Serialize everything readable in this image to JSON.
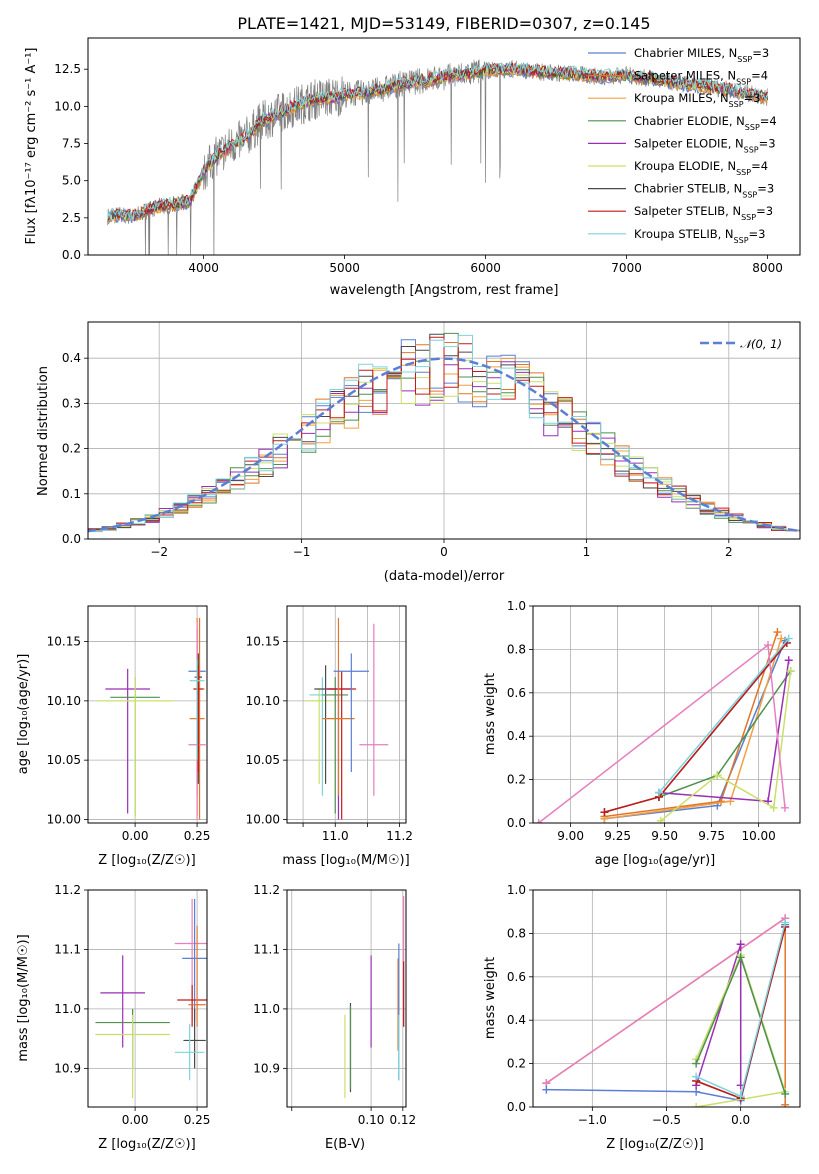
{
  "chart_data": [
    {
      "id": "spectrum",
      "type": "line",
      "title": "PLATE=1421, MJD=53149, FIBERID=0307, z=0.145",
      "xlabel": "wavelength [Angstrom, rest frame]",
      "ylabel": "Flux [fλ10⁻¹⁷ erg cm⁻² s⁻¹ A⁻¹]",
      "xlim": [
        3180,
        8230
      ],
      "ylim": [
        0,
        14.6
      ],
      "xticks": [
        4000,
        5000,
        6000,
        7000,
        8000
      ],
      "yticks": [
        "0.0",
        "2.5",
        "5.0",
        "7.5",
        "10.0",
        "12.5"
      ],
      "grid": false,
      "legend_position": "top-right",
      "observed_color": "#808080",
      "continuum": {
        "x": [
          3320,
          3400,
          3500,
          3600,
          3700,
          3800,
          3900,
          4000,
          4100,
          4200,
          4300,
          4400,
          4500,
          4600,
          4700,
          4800,
          4900,
          5000,
          5200,
          5400,
          5600,
          5800,
          6000,
          6200,
          6400,
          6600,
          6800,
          7000,
          7200,
          7400,
          7600,
          7800,
          8000
        ],
        "y": [
          2.6,
          2.7,
          2.6,
          3.0,
          3.3,
          3.4,
          3.6,
          5.6,
          6.7,
          7.4,
          7.9,
          8.9,
          9.4,
          9.8,
          10.2,
          10.5,
          10.6,
          10.8,
          11.0,
          11.5,
          11.8,
          12.1,
          12.4,
          12.5,
          12.3,
          12.2,
          12.0,
          12.1,
          11.8,
          11.5,
          11.3,
          11.0,
          10.6
        ]
      },
      "series": [
        {
          "name": "Chabrier MILES, N",
          "sub": "SSP",
          "suffix": "=3",
          "color": "#5b7fd4"
        },
        {
          "name": "Salpeter MILES, N",
          "sub": "SSP",
          "suffix": "=4",
          "color": "#e0762a"
        },
        {
          "name": "Kroupa MILES, N",
          "sub": "SSP",
          "suffix": "=3",
          "color": "#f0a043"
        },
        {
          "name": "Chabrier ELODIE, N",
          "sub": "SSP",
          "suffix": "=4",
          "color": "#4f8f4f"
        },
        {
          "name": "Salpeter ELODIE, N",
          "sub": "SSP",
          "suffix": "=3",
          "color": "#9a2fb5"
        },
        {
          "name": "Kroupa ELODIE, N",
          "sub": "SSP",
          "suffix": "=4",
          "color": "#c8e06a"
        },
        {
          "name": "Chabrier STELIB, N",
          "sub": "SSP",
          "suffix": "=3",
          "color": "#4a4a4a"
        },
        {
          "name": "Salpeter STELIB, N",
          "sub": "SSP",
          "suffix": "=3",
          "color": "#c41a1a"
        },
        {
          "name": "Kroupa STELIB, N",
          "sub": "SSP",
          "suffix": "=3",
          "color": "#7dd4dc"
        }
      ]
    },
    {
      "id": "residuals",
      "type": "step",
      "xlabel": "(data-model)/error",
      "ylabel": "Normed distribution",
      "xlim": [
        -2.5,
        2.5
      ],
      "ylim": [
        0,
        0.48
      ],
      "xticks": [
        -2,
        -1,
        0,
        1,
        2
      ],
      "xticklabels": [
        "−2",
        "−1",
        "0",
        "1",
        "2"
      ],
      "yticks": [
        "0.0",
        "0.1",
        "0.2",
        "0.3",
        "0.4"
      ],
      "grid": true,
      "legend_position": "top-right",
      "gauss_label": "𝒩(0, 1)",
      "gauss_color": "#5b7fd4"
    },
    {
      "id": "age_vs_Z",
      "type": "errorbar",
      "xlabel": "Z [log₁₀(Z/Z☉)]",
      "ylabel": "age  [log₁₀(age/yr)]",
      "xlim": [
        -0.19,
        0.29
      ],
      "ylim": [
        9.997,
        10.18
      ],
      "xticks": [
        0.0,
        0.25
      ],
      "xticklabels": [
        "0.00",
        "0.25"
      ],
      "yticks": [
        10.0,
        10.05,
        10.1,
        10.15
      ],
      "yticklabels": [
        "10.00",
        "10.05",
        "10.10",
        "10.15"
      ],
      "grid": true,
      "points": [
        {
          "x": -0.03,
          "y": 10.11,
          "xerr": 0.09,
          "ylo": 10.005,
          "yhi": 10.127,
          "color": "#9a2fb5"
        },
        {
          "x": 0.0,
          "y": 10.103,
          "xerr": 0.1,
          "ylo": 10.003,
          "yhi": 10.12,
          "color": "#4f8f4f"
        },
        {
          "x": 0.0,
          "y": 10.1,
          "xerr": 0.15,
          "ylo": 10.0,
          "yhi": 10.12,
          "color": "#c8e06a"
        },
        {
          "x": 0.25,
          "y": 10.125,
          "xerr": 0.035,
          "ylo": 10.02,
          "yhi": 10.16,
          "color": "#5b7fd4"
        },
        {
          "x": 0.26,
          "y": 10.11,
          "xerr": 0.02,
          "ylo": 10.0,
          "yhi": 10.17,
          "color": "#e0762a"
        },
        {
          "x": 0.25,
          "y": 10.085,
          "xerr": 0.03,
          "ylo": 10.003,
          "yhi": 10.17,
          "color": "#e0762a"
        },
        {
          "x": 0.25,
          "y": 10.063,
          "xerr": 0.035,
          "ylo": 10.0,
          "yhi": 10.167,
          "color": "#e87ec0"
        },
        {
          "x": 0.255,
          "y": 10.12,
          "xerr": 0.015,
          "ylo": 10.03,
          "yhi": 10.14,
          "color": "#4a4a4a"
        },
        {
          "x": 0.255,
          "y": 10.11,
          "xerr": 0.02,
          "ylo": 10.04,
          "yhi": 10.13,
          "color": "#c41a1a"
        },
        {
          "x": 0.25,
          "y": 10.117,
          "xerr": 0.03,
          "ylo": 10.05,
          "yhi": 10.135,
          "color": "#7dd4dc"
        }
      ]
    },
    {
      "id": "age_vs_mass",
      "type": "errorbar",
      "xlabel": "mass [log₁₀(M/M☉)]",
      "ylabel": "",
      "xlim": [
        10.85,
        11.22
      ],
      "ylim": [
        9.997,
        10.18
      ],
      "xticks": [
        10.9,
        11.0,
        11.1,
        11.2
      ],
      "xticklabels": [
        "",
        "11.0",
        "",
        "11.2"
      ],
      "yticks": [
        10.0,
        10.05,
        10.1,
        10.15
      ],
      "yticklabels": [
        "10.00",
        "10.05",
        "10.10",
        "10.15"
      ],
      "grid": true,
      "points": [
        {
          "x": 10.95,
          "y": 10.1,
          "xerr": 0.04,
          "ylo": 10.03,
          "yhi": 10.11,
          "color": "#c8e06a"
        },
        {
          "x": 10.96,
          "y": 10.105,
          "xerr": 0.04,
          "ylo": 10.02,
          "yhi": 10.12,
          "color": "#7dd4dc"
        },
        {
          "x": 10.97,
          "y": 10.11,
          "xerr": 0.035,
          "ylo": 10.03,
          "yhi": 10.13,
          "color": "#4a4a4a"
        },
        {
          "x": 11.0,
          "y": 10.105,
          "xerr": 0.04,
          "ylo": 10.005,
          "yhi": 10.12,
          "color": "#4f8f4f"
        },
        {
          "x": 11.01,
          "y": 10.11,
          "xerr": 0.04,
          "ylo": 10.0,
          "yhi": 10.125,
          "color": "#9a2fb5"
        },
        {
          "x": 11.02,
          "y": 10.11,
          "xerr": 0.045,
          "ylo": 10.0,
          "yhi": 10.125,
          "color": "#c41a1a"
        },
        {
          "x": 11.01,
          "y": 10.085,
          "xerr": 0.05,
          "ylo": 10.02,
          "yhi": 10.17,
          "color": "#e0762a"
        },
        {
          "x": 11.05,
          "y": 10.125,
          "xerr": 0.055,
          "ylo": 10.04,
          "yhi": 10.14,
          "color": "#5b7fd4"
        },
        {
          "x": 11.12,
          "y": 10.063,
          "xerr": 0.045,
          "ylo": 10.02,
          "yhi": 10.165,
          "color": "#e87ec0"
        }
      ]
    },
    {
      "id": "weight_vs_age",
      "type": "line",
      "xlabel": "age  [log₁₀(age/yr)]",
      "ylabel": "mass weight",
      "xlim": [
        8.8,
        10.22
      ],
      "ylim": [
        0.0,
        1.0
      ],
      "xticks": [
        9.0,
        9.25,
        9.5,
        9.75,
        10.0
      ],
      "xticklabels": [
        "9.00",
        "9.25",
        "9.50",
        "9.75",
        "10.00"
      ],
      "yticks": [
        0.0,
        0.2,
        0.4,
        0.6,
        0.8,
        1.0
      ],
      "yticklabels": [
        "0.0",
        "0.2",
        "0.4",
        "0.6",
        "0.8",
        "1.0"
      ],
      "grid": true,
      "series": [
        {
          "color": "#5b7fd4",
          "x": [
            9.18,
            9.78,
            10.14
          ],
          "y": [
            0.02,
            0.08,
            0.84
          ]
        },
        {
          "color": "#e0762a",
          "x": [
            9.18,
            9.8,
            10.1
          ],
          "y": [
            0.03,
            0.1,
            0.88
          ]
        },
        {
          "color": "#f0a043",
          "x": [
            9.18,
            9.85,
            10.12
          ],
          "y": [
            0.02,
            0.1,
            0.85
          ]
        },
        {
          "color": "#4f8f4f",
          "x": [
            9.47,
            9.78,
            10.17
          ],
          "y": [
            0.12,
            0.22,
            0.7
          ]
        },
        {
          "color": "#9a2fb5",
          "x": [
            9.47,
            10.05,
            10.16
          ],
          "y": [
            0.14,
            0.1,
            0.75
          ]
        },
        {
          "color": "#c8e06a",
          "x": [
            9.48,
            9.78,
            10.08,
            10.17
          ],
          "y": [
            0.01,
            0.22,
            0.07,
            0.7
          ]
        },
        {
          "color": "#4a4a4a",
          "x": [
            9.18,
            9.47,
            10.15
          ],
          "y": [
            0.05,
            0.12,
            0.83
          ]
        },
        {
          "color": "#c41a1a",
          "x": [
            9.18,
            9.47,
            10.15
          ],
          "y": [
            0.05,
            0.12,
            0.83
          ]
        },
        {
          "color": "#7dd4dc",
          "x": [
            9.47,
            10.16
          ],
          "y": [
            0.14,
            0.85
          ]
        },
        {
          "color": "#e87ec0",
          "x": [
            8.83,
            10.05,
            10.14
          ],
          "y": [
            0.0,
            0.82,
            0.07
          ]
        }
      ]
    },
    {
      "id": "mass_vs_Z",
      "type": "errorbar",
      "xlabel": "Z [log₁₀(Z/Z☉)]",
      "ylabel": "mass [log₁₀(M/M☉)]",
      "xlim": [
        -0.19,
        0.29
      ],
      "ylim": [
        10.835,
        11.2
      ],
      "xticks": [
        -0.25,
        0.0,
        0.25
      ],
      "xticklabels": [
        "",
        "0.00",
        "0.25"
      ],
      "yticks": [
        10.9,
        11.0,
        11.1,
        11.2
      ],
      "yticklabels": [
        "10.9",
        "11.0",
        "11.1",
        "11.2"
      ],
      "grid": true,
      "points": [
        {
          "x": -0.05,
          "y": 11.027,
          "xerr": 0.09,
          "ylo": 10.935,
          "yhi": 11.09,
          "color": "#9a2fb5"
        },
        {
          "x": -0.01,
          "y": 10.977,
          "xerr": 0.15,
          "ylo": 10.9,
          "yhi": 11.0,
          "color": "#4f8f4f"
        },
        {
          "x": -0.01,
          "y": 10.957,
          "xerr": 0.15,
          "ylo": 10.85,
          "yhi": 10.99,
          "color": "#c8e06a"
        },
        {
          "x": 0.23,
          "y": 11.11,
          "xerr": 0.07,
          "ylo": 10.98,
          "yhi": 11.185,
          "color": "#e87ec0"
        },
        {
          "x": 0.24,
          "y": 11.085,
          "xerr": 0.05,
          "ylo": 10.98,
          "yhi": 11.185,
          "color": "#5b7fd4"
        },
        {
          "x": 0.23,
          "y": 11.015,
          "xerr": 0.06,
          "ylo": 10.97,
          "yhi": 11.04,
          "color": "#c41a1a"
        },
        {
          "x": 0.25,
          "y": 11.007,
          "xerr": 0.035,
          "ylo": 10.97,
          "yhi": 11.14,
          "color": "#e0762a"
        },
        {
          "x": 0.24,
          "y": 10.947,
          "xerr": 0.045,
          "ylo": 10.9,
          "yhi": 11.0,
          "color": "#4a4a4a"
        },
        {
          "x": 0.22,
          "y": 10.927,
          "xerr": 0.06,
          "ylo": 10.88,
          "yhi": 10.975,
          "color": "#7dd4dc"
        }
      ]
    },
    {
      "id": "mass_vs_EBV",
      "type": "errorbar",
      "xlabel": "E(B-V)",
      "ylabel": "",
      "xlim": [
        0.047,
        0.122
      ],
      "ylim": [
        10.835,
        11.2
      ],
      "xticks": [
        0.05,
        0.1,
        0.12
      ],
      "xticklabels": [
        "",
        "0.10",
        "0.12"
      ],
      "yticks": [
        10.9,
        11.0,
        11.1,
        11.2
      ],
      "yticklabels": [
        "10.9",
        "11.0",
        "11.1",
        "11.2"
      ],
      "grid": true,
      "points": [
        {
          "x": 0.0835,
          "y": 10.94,
          "xerr": 0,
          "ylo": 10.85,
          "yhi": 10.99,
          "color": "#c8e06a"
        },
        {
          "x": 0.087,
          "y": 10.937,
          "xerr": 0,
          "ylo": 10.86,
          "yhi": 11.01,
          "color": "#4a4a4a"
        },
        {
          "x": 0.087,
          "y": 10.937,
          "xerr": 0,
          "ylo": 10.865,
          "yhi": 11.005,
          "color": "#4f8f4f"
        },
        {
          "x": 0.1,
          "y": 11.01,
          "xerr": 0,
          "ylo": 10.935,
          "yhi": 11.09,
          "color": "#9a2fb5"
        },
        {
          "x": 0.117,
          "y": 11.03,
          "xerr": 0,
          "ylo": 10.93,
          "yhi": 11.085,
          "color": "#e0762a"
        },
        {
          "x": 0.1175,
          "y": 11.0,
          "xerr": 0,
          "ylo": 10.88,
          "yhi": 11.11,
          "color": "#5b7fd4"
        },
        {
          "x": 0.1175,
          "y": 10.96,
          "xerr": 0,
          "ylo": 10.88,
          "yhi": 10.99,
          "color": "#7dd4dc"
        },
        {
          "x": 0.1205,
          "y": 11.05,
          "xerr": 0,
          "ylo": 10.97,
          "yhi": 11.19,
          "color": "#e87ec0"
        },
        {
          "x": 0.1205,
          "y": 11.03,
          "xerr": 0,
          "ylo": 10.97,
          "yhi": 11.08,
          "color": "#c41a1a"
        }
      ]
    },
    {
      "id": "weight_vs_Z",
      "type": "line",
      "xlabel": "Z [log₁₀(Z/Z☉)]",
      "ylabel": "mass weight",
      "xlim": [
        -1.4,
        0.4
      ],
      "ylim": [
        0.0,
        1.0
      ],
      "xticks": [
        -1.0,
        -0.5,
        0.0
      ],
      "xticklabels": [
        "−1.0",
        "−0.5",
        "0.0"
      ],
      "yticks": [
        0.0,
        0.2,
        0.4,
        0.6,
        0.8,
        1.0
      ],
      "yticklabels": [
        "0.0",
        "0.2",
        "0.4",
        "0.6",
        "0.8",
        "1.0"
      ],
      "grid": true,
      "series": [
        {
          "color": "#e0762a",
          "x": [
            -1.31,
            0.3,
            0.3
          ],
          "y": [
            0.11,
            0.87,
            0.01
          ]
        },
        {
          "color": "#e87ec0",
          "x": [
            -1.31,
            0.3
          ],
          "y": [
            0.11,
            0.87
          ]
        },
        {
          "color": "#5b7fd4",
          "x": [
            -1.31,
            -0.3,
            0.0,
            0.3
          ],
          "y": [
            0.08,
            0.07,
            0.03,
            0.84
          ]
        },
        {
          "color": "#9a2fb5",
          "x": [
            -0.3,
            0.0,
            0.0
          ],
          "y": [
            0.1,
            0.75,
            0.1
          ]
        },
        {
          "color": "#c8e06a",
          "x": [
            -0.3,
            0.0,
            0.3,
            -0.3
          ],
          "y": [
            0.22,
            0.7,
            0.07,
            0.0
          ]
        },
        {
          "color": "#4f8f4f",
          "x": [
            -0.3,
            0.0,
            0.3
          ],
          "y": [
            0.2,
            0.69,
            0.06
          ]
        },
        {
          "color": "#4a4a4a",
          "x": [
            -0.3,
            0.0,
            0.3
          ],
          "y": [
            0.12,
            0.04,
            0.83
          ]
        },
        {
          "color": "#c41a1a",
          "x": [
            -0.3,
            0.0,
            0.3
          ],
          "y": [
            0.12,
            0.04,
            0.83
          ]
        },
        {
          "color": "#7dd4dc",
          "x": [
            -0.3,
            0.0,
            0.3
          ],
          "y": [
            0.14,
            0.05,
            0.85
          ]
        }
      ]
    }
  ]
}
